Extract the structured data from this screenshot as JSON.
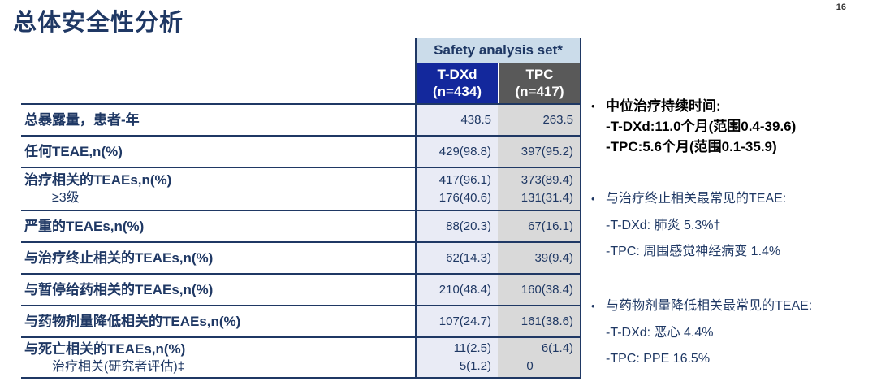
{
  "page": {
    "number": "16",
    "title": "总体安全性分析"
  },
  "table": {
    "set_label": "Safety analysis set*",
    "columns": [
      {
        "name": "T-DXd",
        "n": "(n=434)"
      },
      {
        "name": "TPC",
        "n": "(n=417)"
      }
    ],
    "rows": [
      {
        "label": "总暴露量，患者-年",
        "sub": null,
        "tdxd": [
          "438.5"
        ],
        "tpc": [
          "263.5"
        ]
      },
      {
        "label": "任何TEAE,n(%)",
        "sub": null,
        "tdxd": [
          "429(98.8)"
        ],
        "tpc": [
          "397(95.2)"
        ]
      },
      {
        "label": "治疗相关的TEAEs,n(%)",
        "sub": "≥3级",
        "tdxd": [
          "417(96.1)",
          "176(40.6)"
        ],
        "tpc": [
          "373(89.4)",
          "131(31.4)"
        ]
      },
      {
        "label": "严重的TEAEs,n(%)",
        "sub": null,
        "tdxd": [
          "88(20.3)"
        ],
        "tpc": [
          "67(16.1)"
        ]
      },
      {
        "label": "与治疗终止相关的TEAEs,n(%)",
        "sub": null,
        "tdxd": [
          "62(14.3)"
        ],
        "tpc": [
          "39(9.4)"
        ]
      },
      {
        "label": "与暂停给药相关的TEAEs,n(%)",
        "sub": null,
        "tdxd": [
          "210(48.4)"
        ],
        "tpc": [
          "160(38.4)"
        ]
      },
      {
        "label": "与药物剂量降低相关的TEAEs,n(%)",
        "sub": null,
        "tdxd": [
          "107(24.7)"
        ],
        "tpc": [
          "161(38.6)"
        ]
      },
      {
        "label": "与死亡相关的TEAEs,n(%)",
        "sub": "治疗相关(研究者评估)‡",
        "tdxd": [
          "11(2.5)",
          "5(1.2)"
        ],
        "tpc": [
          "6(1.4)",
          "0"
        ]
      }
    ]
  },
  "notes": [
    {
      "emphasis": true,
      "title": "中位治疗持续时间:",
      "lines": [
        "-T-DXd:11.0个月(范围0.4-39.6)",
        "-TPC:5.6个月(范围0.1-35.9)"
      ]
    },
    {
      "emphasis": false,
      "title": "与治疗终止相关最常见的TEAE:",
      "lines": [
        "-T-DXd: 肺炎 5.3%†",
        "-TPC: 周围感觉神经病变 1.4%"
      ]
    },
    {
      "emphasis": false,
      "title": "与药物剂量降低相关最常见的TEAE:",
      "lines": [
        "-T-DXd: 恶心 4.4%",
        "-TPC: PPE 16.5%"
      ]
    }
  ],
  "colors": {
    "navy": "#1F3864",
    "header_band": "#CBDCEA",
    "tdxd_header_bg": "#13289C",
    "tpc_header_bg": "#595959",
    "tdxd_col_bg": "#E9EBF5",
    "tpc_col_bg": "#D9D9D9",
    "emphasis_text": "#000000"
  }
}
